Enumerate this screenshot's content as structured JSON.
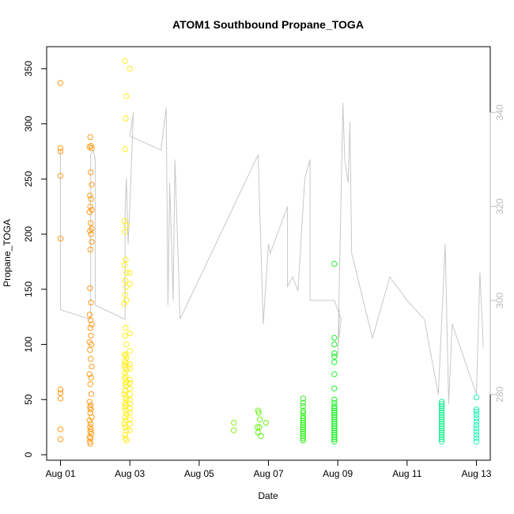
{
  "chart_data": {
    "type": "scatter",
    "title": "ATOM1 Southbound Propane_TOGA",
    "xlabel": "Date",
    "ylabel": "Propane_TOGA",
    "x_unit": "days since Aug 01",
    "xlim": [
      -0.4,
      12.4
    ],
    "ylim": [
      -5,
      370
    ],
    "y_right_lim": [
      266,
      354
    ],
    "x_ticks": [
      {
        "value": 0,
        "label": "Aug 01"
      },
      {
        "value": 2,
        "label": "Aug 03"
      },
      {
        "value": 4,
        "label": "Aug 05"
      },
      {
        "value": 6,
        "label": "Aug 07"
      },
      {
        "value": 8,
        "label": "Aug 09"
      },
      {
        "value": 10,
        "label": "Aug 11"
      },
      {
        "value": 12,
        "label": "Aug 13"
      }
    ],
    "y_ticks": [
      {
        "value": 0,
        "label": "0"
      },
      {
        "value": 50,
        "label": "50"
      },
      {
        "value": 100,
        "label": "100"
      },
      {
        "value": 150,
        "label": "150"
      },
      {
        "value": 200,
        "label": "200"
      },
      {
        "value": 250,
        "label": "250"
      },
      {
        "value": 300,
        "label": "300"
      },
      {
        "value": 350,
        "label": "350"
      }
    ],
    "y_right_ticks": [
      {
        "value": 280,
        "label": "280"
      },
      {
        "value": 300,
        "label": "300"
      },
      {
        "value": 320,
        "label": "320"
      },
      {
        "value": 340,
        "label": "340"
      }
    ],
    "series": [
      {
        "name": "Aug 01",
        "color": "#ff9d1e",
        "points": [
          [
            0.0,
            337
          ],
          [
            0.0,
            278
          ],
          [
            0.0,
            275
          ],
          [
            0.0,
            253
          ],
          [
            0.0,
            196
          ],
          [
            0.0,
            59
          ],
          [
            0.0,
            56
          ],
          [
            0.0,
            51
          ],
          [
            0.0,
            23
          ],
          [
            0.0,
            14
          ]
        ]
      },
      {
        "name": "Aug 02",
        "color": "#ff9d1e",
        "points": [
          [
            0.86,
            288
          ],
          [
            0.88,
            280
          ],
          [
            0.9,
            278
          ],
          [
            0.84,
            279
          ],
          [
            0.87,
            256
          ],
          [
            0.9,
            245
          ],
          [
            0.85,
            235
          ],
          [
            0.88,
            232
          ],
          [
            0.86,
            225
          ],
          [
            0.9,
            222
          ],
          [
            0.84,
            220
          ],
          [
            0.87,
            210
          ],
          [
            0.9,
            205
          ],
          [
            0.85,
            203
          ],
          [
            0.88,
            200
          ],
          [
            0.9,
            193
          ],
          [
            0.86,
            186
          ],
          [
            0.85,
            151
          ],
          [
            0.88,
            138
          ],
          [
            0.84,
            127
          ],
          [
            0.87,
            122
          ],
          [
            0.9,
            118
          ],
          [
            0.86,
            115
          ],
          [
            0.88,
            108
          ],
          [
            0.84,
            102
          ],
          [
            0.89,
            100
          ],
          [
            0.85,
            95
          ],
          [
            0.87,
            87
          ],
          [
            0.9,
            80
          ],
          [
            0.84,
            73
          ],
          [
            0.88,
            70
          ],
          [
            0.86,
            64
          ],
          [
            0.89,
            55
          ],
          [
            0.84,
            48
          ],
          [
            0.87,
            45
          ],
          [
            0.85,
            43
          ],
          [
            0.88,
            41
          ],
          [
            0.86,
            38
          ],
          [
            0.9,
            34
          ],
          [
            0.84,
            31
          ],
          [
            0.87,
            28
          ],
          [
            0.85,
            25
          ],
          [
            0.88,
            23
          ],
          [
            0.86,
            21
          ],
          [
            0.89,
            19
          ],
          [
            0.84,
            16
          ],
          [
            0.87,
            15
          ],
          [
            0.85,
            12
          ],
          [
            0.86,
            10
          ]
        ]
      },
      {
        "name": "Aug 03",
        "color": "#ffee1e",
        "points": [
          [
            2.0,
            350
          ],
          [
            2.0,
            165
          ],
          [
            2.0,
            155
          ],
          [
            2.0,
            110
          ],
          [
            2.0,
            94
          ],
          [
            2.0,
            82
          ],
          [
            2.0,
            78
          ],
          [
            2.0,
            68
          ],
          [
            2.0,
            65
          ],
          [
            2.0,
            60
          ],
          [
            2.0,
            55
          ],
          [
            2.0,
            50
          ],
          [
            2.0,
            46
          ],
          [
            2.0,
            42
          ],
          [
            2.0,
            38
          ],
          [
            2.0,
            32
          ],
          [
            2.0,
            28
          ],
          [
            2.0,
            22
          ]
        ]
      },
      {
        "name": "Aug 04",
        "color": "#ffee1e",
        "points": [
          [
            1.86,
            357
          ],
          [
            1.9,
            325
          ],
          [
            1.88,
            305
          ],
          [
            1.87,
            277
          ],
          [
            1.84,
            212
          ],
          [
            1.9,
            208
          ],
          [
            1.86,
            202
          ],
          [
            1.88,
            177
          ],
          [
            1.85,
            172
          ],
          [
            1.91,
            165
          ],
          [
            1.87,
            158
          ],
          [
            1.89,
            152
          ],
          [
            1.86,
            145
          ],
          [
            1.9,
            140
          ],
          [
            1.84,
            137
          ],
          [
            1.88,
            115
          ],
          [
            1.86,
            108
          ],
          [
            1.9,
            100
          ],
          [
            1.85,
            91
          ],
          [
            1.88,
            90
          ],
          [
            1.91,
            88
          ],
          [
            1.86,
            85
          ],
          [
            1.89,
            83
          ],
          [
            1.84,
            81
          ],
          [
            1.87,
            79
          ],
          [
            1.9,
            77
          ],
          [
            1.86,
            74
          ],
          [
            1.88,
            71
          ],
          [
            1.85,
            69
          ],
          [
            1.9,
            66
          ],
          [
            1.87,
            64
          ],
          [
            1.89,
            62
          ],
          [
            1.86,
            58
          ],
          [
            1.84,
            55
          ],
          [
            1.88,
            52
          ],
          [
            1.9,
            50
          ],
          [
            1.86,
            47
          ],
          [
            1.89,
            45
          ],
          [
            1.85,
            43
          ],
          [
            1.87,
            40
          ],
          [
            1.9,
            37
          ],
          [
            1.86,
            34
          ],
          [
            1.88,
            31
          ],
          [
            1.84,
            28
          ],
          [
            1.87,
            25
          ],
          [
            1.9,
            22
          ],
          [
            1.86,
            18
          ],
          [
            1.88,
            15
          ],
          [
            1.9,
            13
          ]
        ]
      },
      {
        "name": "Aug 06",
        "color": "#8cf01e",
        "points": [
          [
            5.0,
            29
          ],
          [
            5.0,
            22
          ]
        ]
      },
      {
        "name": "Aug 07",
        "color": "#6ef01e",
        "points": [
          [
            5.7,
            40
          ],
          [
            5.72,
            38
          ],
          [
            5.68,
            25
          ],
          [
            5.75,
            32
          ],
          [
            5.7,
            20
          ],
          [
            5.78,
            17
          ],
          [
            5.74,
            25
          ],
          [
            5.93,
            29
          ]
        ]
      },
      {
        "name": "Aug 08",
        "color": "#34f01e",
        "points": [
          [
            7.0,
            51
          ],
          [
            7.0,
            47
          ],
          [
            7.0,
            44
          ],
          [
            7.0,
            40
          ],
          [
            7.0,
            38
          ],
          [
            7.0,
            35
          ],
          [
            7.0,
            33
          ],
          [
            7.0,
            31
          ],
          [
            7.0,
            29
          ],
          [
            7.0,
            27
          ],
          [
            7.0,
            25
          ],
          [
            7.0,
            23
          ],
          [
            7.0,
            21
          ],
          [
            7.0,
            19
          ],
          [
            7.0,
            17
          ],
          [
            7.0,
            15
          ],
          [
            7.0,
            13
          ]
        ]
      },
      {
        "name": "Aug 09",
        "color": "#1ef02a",
        "points": [
          [
            7.9,
            173
          ],
          [
            7.9,
            106
          ],
          [
            7.9,
            100
          ],
          [
            7.9,
            92
          ],
          [
            7.9,
            89
          ],
          [
            7.9,
            84
          ],
          [
            7.9,
            73
          ],
          [
            7.9,
            60
          ],
          [
            7.9,
            50
          ],
          [
            7.9,
            47
          ],
          [
            7.9,
            44
          ],
          [
            7.9,
            42
          ],
          [
            7.9,
            40
          ],
          [
            7.9,
            38
          ],
          [
            7.9,
            36
          ],
          [
            7.9,
            34
          ],
          [
            7.9,
            32
          ],
          [
            7.9,
            30
          ],
          [
            7.9,
            28
          ],
          [
            7.9,
            26
          ],
          [
            7.9,
            24
          ],
          [
            7.9,
            22
          ],
          [
            7.9,
            20
          ],
          [
            7.9,
            18
          ],
          [
            7.9,
            16
          ],
          [
            7.9,
            14
          ],
          [
            7.9,
            12
          ]
        ]
      },
      {
        "name": "Aug 12",
        "color": "#1ef096",
        "points": [
          [
            11.0,
            48
          ],
          [
            11.0,
            46
          ],
          [
            11.0,
            44
          ],
          [
            11.0,
            42
          ],
          [
            11.0,
            40
          ],
          [
            11.0,
            38
          ],
          [
            11.0,
            36
          ],
          [
            11.0,
            34
          ],
          [
            11.0,
            32
          ],
          [
            11.0,
            30
          ],
          [
            11.0,
            28
          ],
          [
            11.0,
            26
          ],
          [
            11.0,
            24
          ],
          [
            11.0,
            22
          ],
          [
            11.0,
            20
          ],
          [
            11.0,
            18
          ],
          [
            11.0,
            16
          ],
          [
            11.0,
            14
          ],
          [
            11.0,
            12
          ]
        ]
      },
      {
        "name": "Aug 13",
        "color": "#1ef0b4",
        "points": [
          [
            12.0,
            52
          ],
          [
            12.0,
            41
          ],
          [
            12.0,
            39
          ],
          [
            12.0,
            36
          ],
          [
            12.0,
            33
          ],
          [
            12.0,
            30
          ],
          [
            12.0,
            27
          ],
          [
            12.0,
            24
          ],
          [
            12.0,
            21
          ],
          [
            12.0,
            18
          ],
          [
            12.0,
            15
          ],
          [
            12.0,
            12
          ]
        ]
      }
    ],
    "line_series": {
      "name": "right-axis trace",
      "color": "#c8c8c8",
      "axis": "right",
      "points": [
        [
          0.0,
          332
        ],
        [
          0.0,
          298
        ],
        [
          0.87,
          296
        ],
        [
          0.87,
          331
        ],
        [
          0.95,
          332
        ],
        [
          1.0,
          330
        ],
        [
          1.0,
          299
        ],
        [
          1.86,
          296
        ],
        [
          1.86,
          318
        ],
        [
          1.9,
          326
        ],
        [
          1.95,
          312
        ],
        [
          2.0,
          320
        ],
        [
          2.1,
          340
        ],
        [
          2.0,
          335
        ],
        [
          2.9,
          332
        ],
        [
          3.05,
          341
        ],
        [
          3.1,
          299
        ],
        [
          3.15,
          325
        ],
        [
          3.25,
          300
        ],
        [
          3.3,
          330
        ],
        [
          3.45,
          296
        ],
        [
          5.7,
          331
        ],
        [
          5.85,
          295
        ],
        [
          6.0,
          312
        ],
        [
          6.05,
          310
        ],
        [
          6.55,
          320
        ],
        [
          6.55,
          303
        ],
        [
          6.7,
          305
        ],
        [
          6.85,
          302
        ],
        [
          7.05,
          326
        ],
        [
          7.2,
          330
        ],
        [
          7.2,
          300
        ],
        [
          7.9,
          300
        ],
        [
          8.1,
          296
        ],
        [
          8.0,
          290
        ],
        [
          8.05,
          298
        ],
        [
          8.0,
          288
        ],
        [
          8.15,
          342
        ],
        [
          8.2,
          330
        ],
        [
          8.3,
          325
        ],
        [
          8.35,
          338
        ],
        [
          8.4,
          310
        ],
        [
          9.0,
          292
        ],
        [
          9.5,
          305
        ],
        [
          10.0,
          300
        ],
        [
          10.5,
          296
        ],
        [
          10.9,
          280
        ],
        [
          11.1,
          312
        ],
        [
          11.2,
          278
        ],
        [
          11.3,
          295
        ],
        [
          12.0,
          280
        ],
        [
          12.1,
          306
        ],
        [
          12.2,
          290
        ]
      ]
    }
  }
}
